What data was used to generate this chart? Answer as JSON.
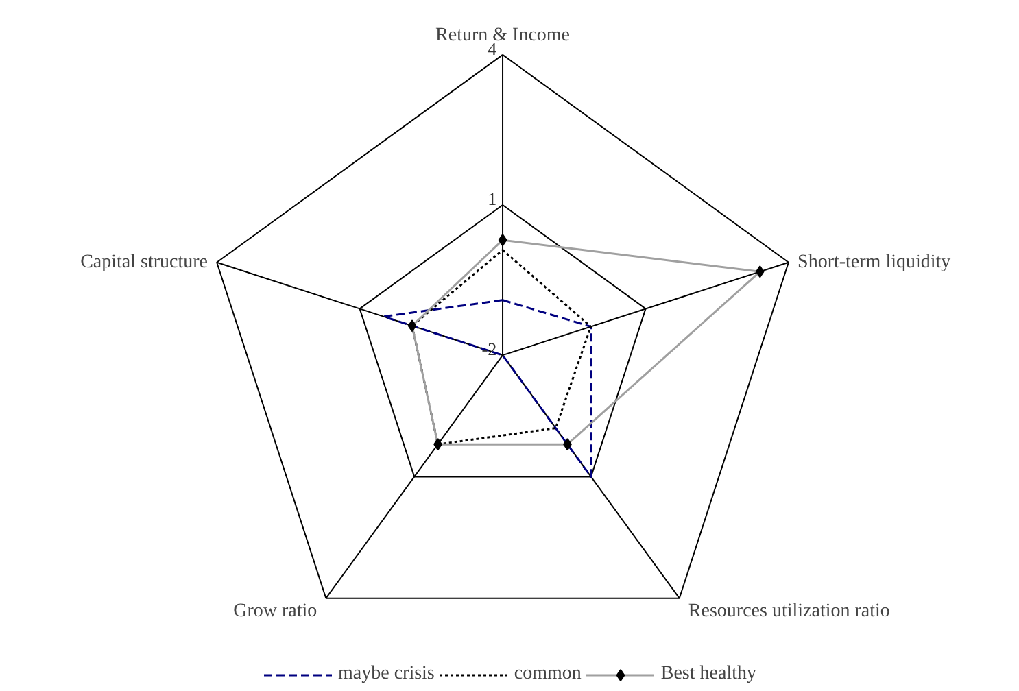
{
  "chart_data": {
    "type": "radar",
    "categories": [
      "Return & Income",
      "Short-term liquidity",
      "Resources utilization ratio",
      "Grow ratio",
      "Capital structure"
    ],
    "ylim": [
      -2,
      4
    ],
    "yticks": [
      -2,
      1,
      4
    ],
    "legend": "bottom",
    "grid": true,
    "series": [
      {
        "name": "maybe crisis",
        "color": "#000080",
        "values": [
          -0.9,
          -0.15,
          1.0,
          -2,
          0.5
        ],
        "line_style": "dashed",
        "marker": "none"
      },
      {
        "name": "common",
        "color": "#000000",
        "values": [
          0.1,
          -0.15,
          -0.2,
          0.2,
          -0.1
        ],
        "line_style": "dotted",
        "marker": "none"
      },
      {
        "name": "Best healthy",
        "color": "#a0a0a0",
        "values": [
          0.3,
          3.4,
          0.2,
          0.2,
          -0.1
        ],
        "line_style": "solid",
        "marker": "diamond"
      }
    ]
  }
}
